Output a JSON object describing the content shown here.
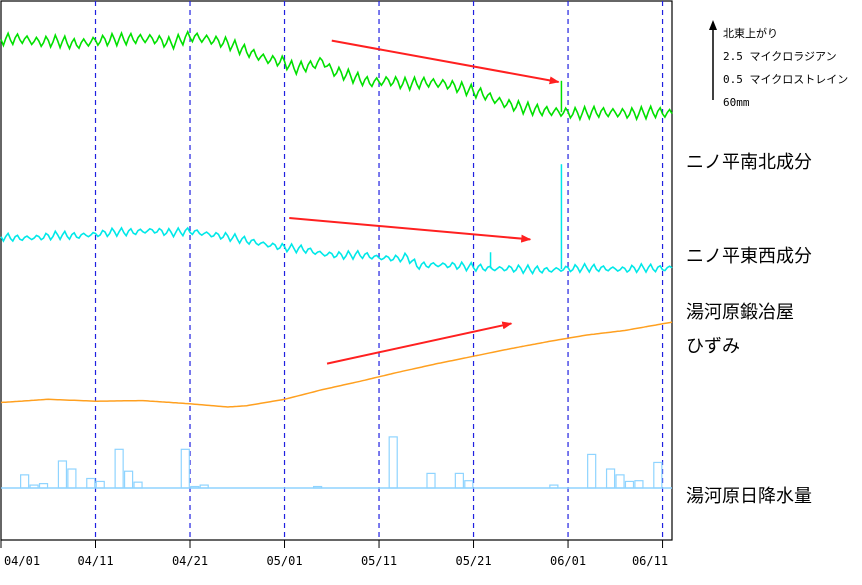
{
  "chart_data": {
    "type": "line",
    "xlim_days": [
      0,
      71
    ],
    "x_ticks": [
      {
        "day": 0,
        "label": "04/01"
      },
      {
        "day": 10,
        "label": "04/11"
      },
      {
        "day": 20,
        "label": "04/21"
      },
      {
        "day": 30,
        "label": "05/01"
      },
      {
        "day": 40,
        "label": "05/11"
      },
      {
        "day": 50,
        "label": "05/21"
      },
      {
        "day": 60,
        "label": "06/01"
      },
      {
        "day": 70,
        "label": "06/11"
      }
    ],
    "legend": {
      "lines": [
        "北東上がり",
        "2.5 マイクロラジアン",
        "0.5 マイクロストレイン",
        "60mm"
      ]
    },
    "series": [
      {
        "name": "ニノ平南北成分",
        "label": "ニノ平南北成分",
        "color": "#00e000",
        "y_scale": "μrad",
        "values": [
          [
            0,
            1.55
          ],
          [
            2,
            1.56
          ],
          [
            4,
            1.52
          ],
          [
            6,
            1.53
          ],
          [
            8,
            1.49
          ],
          [
            10,
            1.53
          ],
          [
            12,
            1.55
          ],
          [
            14,
            1.56
          ],
          [
            16,
            1.56
          ],
          [
            18,
            1.5
          ],
          [
            20,
            1.59
          ],
          [
            22,
            1.55
          ],
          [
            24,
            1.5
          ],
          [
            26,
            1.4
          ],
          [
            28,
            1.3
          ],
          [
            30,
            1.26
          ],
          [
            31,
            1.18
          ],
          [
            33,
            1.22
          ],
          [
            34,
            1.28
          ],
          [
            35,
            1.15
          ],
          [
            37,
            1.08
          ],
          [
            39,
            1.0
          ],
          [
            41,
            1.02
          ],
          [
            43,
            0.98
          ],
          [
            45,
            1.0
          ],
          [
            47,
            0.98
          ],
          [
            49,
            0.92
          ],
          [
            51,
            0.85
          ],
          [
            53,
            0.74
          ],
          [
            55,
            0.68
          ],
          [
            57,
            0.64
          ],
          [
            59,
            0.62
          ],
          [
            61,
            0.6
          ],
          [
            63,
            0.62
          ],
          [
            65,
            0.61
          ],
          [
            67,
            0.6
          ],
          [
            69,
            0.62
          ],
          [
            71,
            0.6
          ]
        ],
        "spikes": [
          {
            "day": 59.3,
            "peak": 1.02
          }
        ]
      },
      {
        "name": "ニノ平東西成分",
        "label": "ニノ平東西成分",
        "color": "#00e8e8",
        "y_scale": "μrad",
        "values": [
          [
            0,
            -0.98
          ],
          [
            2,
            -1.0
          ],
          [
            4,
            -0.99
          ],
          [
            6,
            -0.96
          ],
          [
            8,
            -0.97
          ],
          [
            10,
            -0.95
          ],
          [
            12,
            -0.92
          ],
          [
            14,
            -0.92
          ],
          [
            16,
            -0.9
          ],
          [
            18,
            -0.93
          ],
          [
            20,
            -0.91
          ],
          [
            22,
            -0.95
          ],
          [
            24,
            -0.98
          ],
          [
            26,
            -1.03
          ],
          [
            28,
            -1.08
          ],
          [
            30,
            -1.12
          ],
          [
            32,
            -1.14
          ],
          [
            34,
            -1.2
          ],
          [
            36,
            -1.22
          ],
          [
            38,
            -1.21
          ],
          [
            40,
            -1.25
          ],
          [
            42,
            -1.26
          ],
          [
            43,
            -1.24
          ],
          [
            44,
            -1.35
          ],
          [
            46,
            -1.34
          ],
          [
            48,
            -1.35
          ],
          [
            50,
            -1.37
          ],
          [
            52,
            -1.39
          ],
          [
            54,
            -1.39
          ],
          [
            56,
            -1.4
          ],
          [
            58,
            -1.41
          ],
          [
            60,
            -1.39
          ],
          [
            62,
            -1.38
          ],
          [
            64,
            -1.39
          ],
          [
            66,
            -1.4
          ],
          [
            68,
            -1.38
          ],
          [
            70,
            -1.39
          ],
          [
            71,
            -1.38
          ]
        ],
        "spikes": [
          {
            "day": 51.8,
            "peak": -1.18
          },
          {
            "day": 59.3,
            "peak": -0.05
          }
        ]
      },
      {
        "name": "湯河原鍛冶屋ひずみ",
        "label_line1": "湯河原鍛冶屋",
        "label_line2": "ひずみ",
        "color": "#ffa020",
        "y_scale": "μstrain",
        "values": [
          [
            0,
            -2.1
          ],
          [
            5,
            -2.05
          ],
          [
            10,
            -2.08
          ],
          [
            15,
            -2.07
          ],
          [
            20,
            -2.12
          ],
          [
            24,
            -2.17
          ],
          [
            26,
            -2.15
          ],
          [
            30,
            -2.05
          ],
          [
            34,
            -1.9
          ],
          [
            38,
            -1.77
          ],
          [
            42,
            -1.63
          ],
          [
            46,
            -1.5
          ],
          [
            50,
            -1.38
          ],
          [
            54,
            -1.26
          ],
          [
            58,
            -1.15
          ],
          [
            62,
            -1.05
          ],
          [
            66,
            -0.98
          ],
          [
            71,
            -0.85
          ]
        ]
      },
      {
        "name": "湯河原日降水量",
        "label": "湯河原日降水量",
        "color": "#8fd4ff",
        "type": "bar",
        "unit": "mm",
        "bars": [
          [
            2,
            18
          ],
          [
            3,
            4
          ],
          [
            4,
            6
          ],
          [
            6,
            37
          ],
          [
            7,
            26
          ],
          [
            9,
            13
          ],
          [
            10,
            9
          ],
          [
            12,
            53
          ],
          [
            13,
            23
          ],
          [
            14,
            8
          ],
          [
            19,
            53
          ],
          [
            20,
            2
          ],
          [
            21,
            4
          ],
          [
            33,
            2
          ],
          [
            41,
            70
          ],
          [
            45,
            20
          ],
          [
            48,
            20
          ],
          [
            49,
            10
          ],
          [
            58,
            4
          ],
          [
            62,
            46
          ],
          [
            64,
            26
          ],
          [
            65,
            18
          ],
          [
            66,
            9
          ],
          [
            67,
            10
          ],
          [
            69,
            35
          ]
        ]
      }
    ],
    "annotations": [
      {
        "type": "arrow",
        "color": "#ff2020",
        "from_day": 35,
        "to_day": 59,
        "on_series": "ニノ平南北成分"
      },
      {
        "type": "arrow",
        "color": "#ff2020",
        "from_day": 30.5,
        "to_day": 56,
        "on_series": "ニノ平東西成分"
      },
      {
        "type": "arrow",
        "color": "#ff2020",
        "from_day": 34.5,
        "to_day": 54,
        "on_series": "湯河原鍛冶屋ひずみ"
      }
    ]
  }
}
